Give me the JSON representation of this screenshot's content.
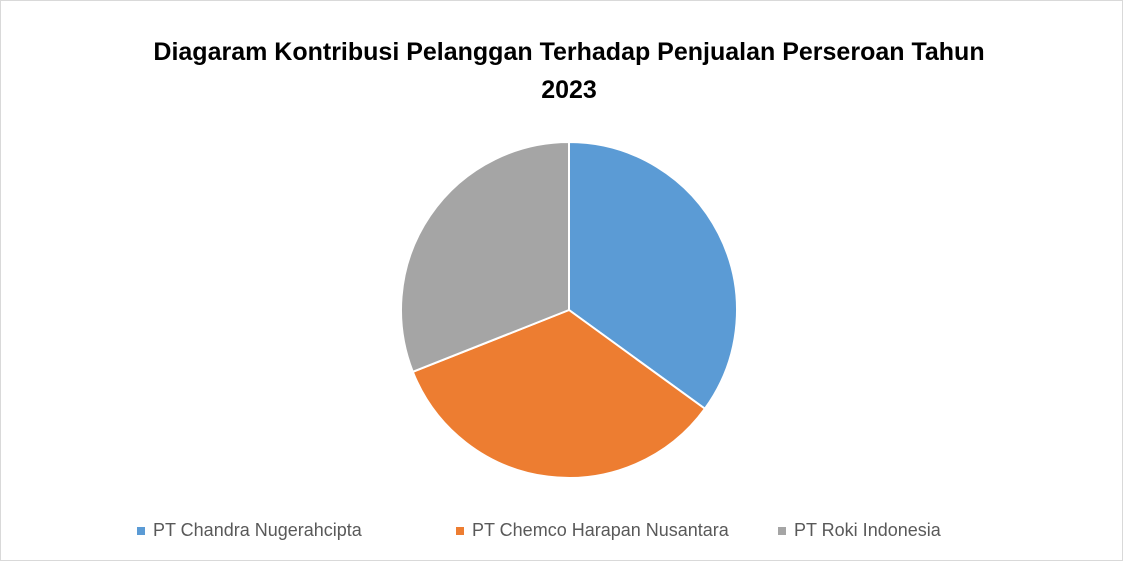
{
  "chart_data": {
    "type": "pie",
    "title": "Diagaram Kontribusi Pelanggan Terhadap Penjualan Perseroan Tahun 2023",
    "categories": [
      "PT Chandra Nugerahcipta",
      "PT Chemco Harapan Nusantara",
      "PT Roki Indonesia"
    ],
    "values": [
      35,
      34,
      31
    ],
    "colors": [
      "#5b9bd5",
      "#ed7d31",
      "#a5a5a5"
    ],
    "legend": "bottom"
  }
}
